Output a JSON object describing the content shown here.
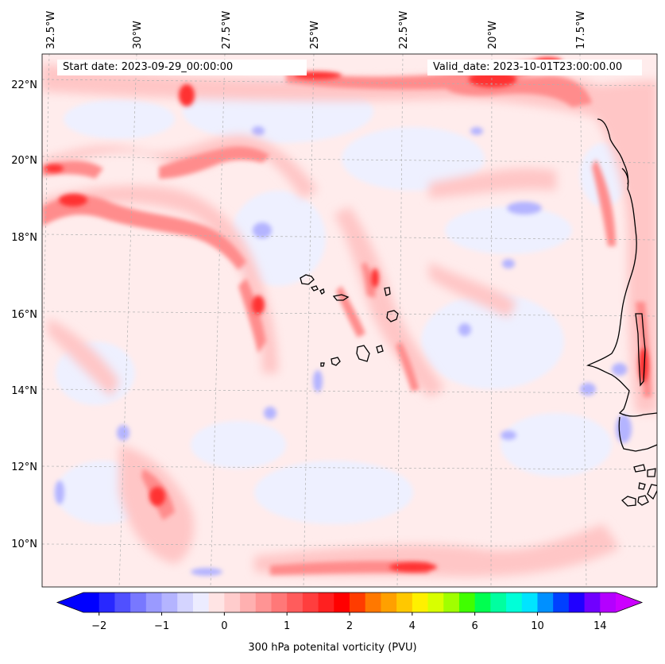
{
  "map": {
    "title_left": "Start date: 2023-09-29_00:00:00",
    "title_right": "Valid_date: 2023-10-01T23:00:00.00",
    "lon_labels": [
      "32.5°W",
      "30°W",
      "27.5°W",
      "25°W",
      "22.5°W",
      "20°W",
      "17.5°W"
    ],
    "lat_labels": [
      "22°N",
      "20°N",
      "18°N",
      "16°N",
      "14°N",
      "12°N",
      "10°N"
    ],
    "colors": {
      "coast": "#000000",
      "grid": "#b0b0b0",
      "background_pv": "#ffecec"
    }
  },
  "colorbar": {
    "title": "300 hPa potenital vorticity (PVU)",
    "tick_labels": [
      "−2",
      "−1",
      "0",
      "1",
      "2",
      "4",
      "6",
      "10",
      "14"
    ],
    "colors": [
      "#0000ff",
      "#2828ff",
      "#5050ff",
      "#7878ff",
      "#9a9aff",
      "#b4b4ff",
      "#d4d4ff",
      "#ececff",
      "#ffe4e4",
      "#ffcccc",
      "#ffb0b0",
      "#ff9494",
      "#ff7878",
      "#ff5c5c",
      "#ff3e3e",
      "#ff2020",
      "#ff0000",
      "#ff3c00",
      "#ff7800",
      "#ffa000",
      "#ffc800",
      "#fff000",
      "#d8ff00",
      "#a0ff00",
      "#40ff00",
      "#00ff50",
      "#00ffa0",
      "#00ffd8",
      "#00e4ff",
      "#0090ff",
      "#0040ff",
      "#2000ff",
      "#7000ff",
      "#b400ff"
    ],
    "under_color": "#0000ff",
    "over_color": "#cc00ff"
  }
}
